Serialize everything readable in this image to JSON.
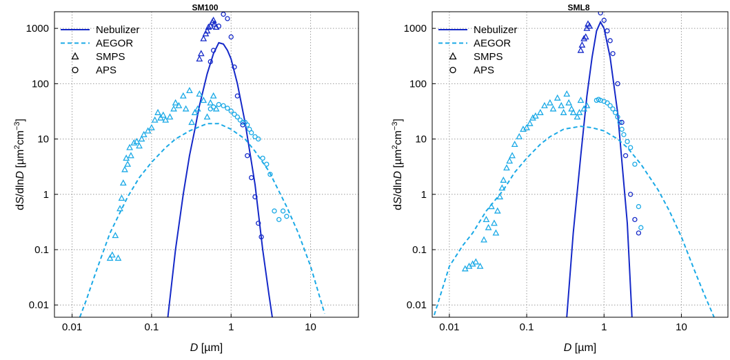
{
  "chart_data": [
    {
      "type": "scatter",
      "title": "SM100",
      "xlabel": "D [µm]",
      "ylabel": "dS/dlnD [µm²cm⁻³]",
      "x_scale": "log",
      "y_scale": "log",
      "xlim": [
        0.006,
        40
      ],
      "ylim": [
        0.006,
        2000
      ],
      "x_ticks": [
        "0.01",
        "0.1",
        "1",
        "10"
      ],
      "y_ticks": [
        "0.01",
        "0.1",
        "1",
        "10",
        "100",
        "1000"
      ],
      "grid": true,
      "legend_position": "top-left",
      "series": [
        {
          "name": "Nebulizer",
          "style": "solid-line",
          "color": "#1428c8",
          "x": [
            0.16,
            0.2,
            0.25,
            0.3,
            0.35,
            0.4,
            0.5,
            0.6,
            0.7,
            0.8,
            0.9,
            1.0,
            1.2,
            1.5,
            2.0,
            2.5,
            3.0,
            3.3
          ],
          "y": [
            0.006,
            0.1,
            1,
            5,
            15,
            40,
            150,
            350,
            550,
            520,
            400,
            280,
            100,
            20,
            1.5,
            0.1,
            0.015,
            0.006
          ]
        },
        {
          "name": "AEGOR",
          "style": "dashed-line",
          "color": "#1aa9e6",
          "x": [
            0.0125,
            0.015,
            0.02,
            0.03,
            0.05,
            0.07,
            0.1,
            0.15,
            0.2,
            0.3,
            0.5,
            0.7,
            1.0,
            1.5,
            2.0,
            3.0,
            5.0,
            7.0,
            10.0,
            15.0
          ],
          "y": [
            0.006,
            0.012,
            0.04,
            0.2,
            0.9,
            2.0,
            3.8,
            7.0,
            10,
            14,
            19,
            19,
            15,
            10,
            6,
            2.6,
            0.6,
            0.2,
            0.05,
            0.007
          ]
        },
        {
          "name": "SMPS",
          "style": "open-triangle",
          "color": "#1aa9e6",
          "x": [
            0.03,
            0.032,
            0.035,
            0.038,
            0.04,
            0.042,
            0.044,
            0.046,
            0.048,
            0.05,
            0.053,
            0.055,
            0.06,
            0.065,
            0.07,
            0.075,
            0.08,
            0.09,
            0.1,
            0.11,
            0.12,
            0.13,
            0.14,
            0.15,
            0.17,
            0.19,
            0.2,
            0.22,
            0.25,
            0.27,
            0.3,
            0.32,
            0.35,
            0.38,
            0.4,
            0.45,
            0.5,
            0.55,
            0.6,
            0.65
          ],
          "y": [
            0.07,
            0.08,
            0.18,
            0.07,
            0.55,
            0.85,
            1.6,
            2.8,
            4.5,
            3.5,
            7,
            5,
            8.5,
            9,
            7.5,
            10,
            12,
            14,
            16,
            22,
            30,
            24,
            27,
            22,
            25,
            35,
            45,
            40,
            60,
            35,
            75,
            20,
            30,
            35,
            65,
            50,
            25,
            45,
            60,
            35
          ]
        },
        {
          "name": "SMPS (Nebulizer)",
          "style": "open-triangle",
          "color": "#1428c8",
          "x": [
            0.4,
            0.42,
            0.45,
            0.48,
            0.5,
            0.52,
            0.55,
            0.58,
            0.6,
            0.62,
            0.65
          ],
          "y": [
            280,
            350,
            650,
            800,
            900,
            1050,
            1100,
            1300,
            1400,
            1200,
            1050
          ]
        },
        {
          "name": "APS",
          "style": "open-circle",
          "color": "#1aa9e6",
          "x": [
            0.55,
            0.6,
            0.7,
            0.8,
            0.9,
            1.0,
            1.1,
            1.2,
            1.3,
            1.4,
            1.5,
            1.6,
            1.7,
            1.8,
            2.0,
            2.2,
            2.5,
            2.8,
            3.1,
            3.5,
            4.0,
            4.5,
            5.0
          ],
          "y": [
            35,
            38,
            42,
            40,
            36,
            32,
            28,
            25,
            22,
            20,
            20,
            18,
            15,
            13,
            11,
            10,
            4.5,
            3.5,
            2.3,
            0.5,
            0.35,
            0.5,
            0.4
          ]
        },
        {
          "name": "APS (Nebulizer)",
          "style": "open-circle",
          "color": "#1428c8",
          "x": [
            0.55,
            0.6,
            0.7,
            0.8,
            0.9,
            1.0,
            1.1,
            1.2,
            1.4,
            1.6,
            1.8,
            2.0,
            2.2,
            2.4
          ],
          "y": [
            250,
            400,
            1100,
            1800,
            1500,
            700,
            200,
            60,
            18,
            5,
            2,
            0.9,
            0.3,
            0.17
          ]
        }
      ]
    },
    {
      "type": "scatter",
      "title": "SML8",
      "xlabel": "D [µm]",
      "ylabel": "dS/dlnD [µm²cm⁻³]",
      "x_scale": "log",
      "y_scale": "log",
      "xlim": [
        0.006,
        40
      ],
      "ylim": [
        0.006,
        2000
      ],
      "x_ticks": [
        "0.01",
        "0.1",
        "1",
        "10"
      ],
      "y_ticks": [
        "0.01",
        "0.1",
        "1",
        "10",
        "100",
        "1000"
      ],
      "grid": true,
      "legend_position": "top-left",
      "series": [
        {
          "name": "Nebulizer",
          "style": "solid-line",
          "color": "#1428c8",
          "x": [
            0.33,
            0.4,
            0.5,
            0.6,
            0.7,
            0.8,
            0.9,
            1.0,
            1.2,
            1.5,
            2.0,
            2.3
          ],
          "y": [
            0.006,
            0.2,
            5,
            60,
            300,
            900,
            1300,
            1000,
            300,
            30,
            0.3,
            0.006
          ]
        },
        {
          "name": "AEGOR",
          "style": "dashed-line",
          "color": "#1aa9e6",
          "x": [
            0.006,
            0.01,
            0.015,
            0.02,
            0.03,
            0.05,
            0.07,
            0.1,
            0.15,
            0.2,
            0.3,
            0.5,
            0.7,
            1.0,
            1.5,
            2.0,
            3.0,
            5.0,
            7.0,
            10.0,
            15.0,
            20.0,
            30.0
          ],
          "y": [
            0.005,
            0.05,
            0.12,
            0.2,
            0.5,
            1.2,
            2.5,
            4.5,
            8,
            11,
            15,
            17,
            16,
            14,
            10,
            7,
            3.5,
            1.2,
            0.5,
            0.17,
            0.04,
            0.015,
            0.004
          ]
        },
        {
          "name": "SMPS",
          "style": "open-triangle",
          "color": "#1aa9e6",
          "x": [
            0.016,
            0.018,
            0.02,
            0.022,
            0.025,
            0.028,
            0.03,
            0.032,
            0.035,
            0.038,
            0.04,
            0.042,
            0.045,
            0.048,
            0.05,
            0.055,
            0.06,
            0.065,
            0.07,
            0.08,
            0.09,
            0.1,
            0.11,
            0.12,
            0.13,
            0.15,
            0.17,
            0.2,
            0.22,
            0.25,
            0.28,
            0.3,
            0.33,
            0.35,
            0.38,
            0.4,
            0.45,
            0.48,
            0.5,
            0.55,
            0.6
          ],
          "y": [
            0.045,
            0.05,
            0.055,
            0.06,
            0.05,
            0.15,
            0.35,
            0.25,
            0.6,
            0.3,
            0.2,
            0.5,
            0.9,
            1.3,
            1.8,
            3,
            4,
            5,
            8,
            11,
            15,
            16,
            19,
            24,
            26,
            30,
            40,
            45,
            35,
            55,
            40,
            30,
            65,
            45,
            35,
            30,
            25,
            30,
            50,
            35,
            40
          ]
        },
        {
          "name": "SMPS (Nebulizer)",
          "style": "open-triangle",
          "color": "#1428c8",
          "x": [
            0.5,
            0.52,
            0.55,
            0.58,
            0.6,
            0.62,
            0.65
          ],
          "y": [
            400,
            500,
            650,
            700,
            1000,
            1200,
            1100
          ]
        },
        {
          "name": "APS",
          "style": "open-circle",
          "color": "#1aa9e6",
          "x": [
            0.8,
            0.85,
            0.9,
            1.0,
            1.1,
            1.2,
            1.3,
            1.4,
            1.5,
            1.6,
            1.7,
            1.8,
            2.0,
            2.2,
            2.5,
            2.8,
            3.0
          ],
          "y": [
            50,
            52,
            50,
            48,
            45,
            40,
            35,
            30,
            25,
            20,
            15,
            12,
            9,
            7,
            3.5,
            0.6,
            0.25
          ]
        },
        {
          "name": "APS (Nebulizer)",
          "style": "open-circle",
          "color": "#1428c8",
          "x": [
            0.9,
            1.0,
            1.1,
            1.2,
            1.3,
            1.5,
            1.7,
            1.9,
            2.2,
            2.5,
            2.8
          ],
          "y": [
            1900,
            1400,
            900,
            600,
            350,
            100,
            20,
            5,
            1,
            0.35,
            0.2
          ]
        }
      ]
    }
  ]
}
